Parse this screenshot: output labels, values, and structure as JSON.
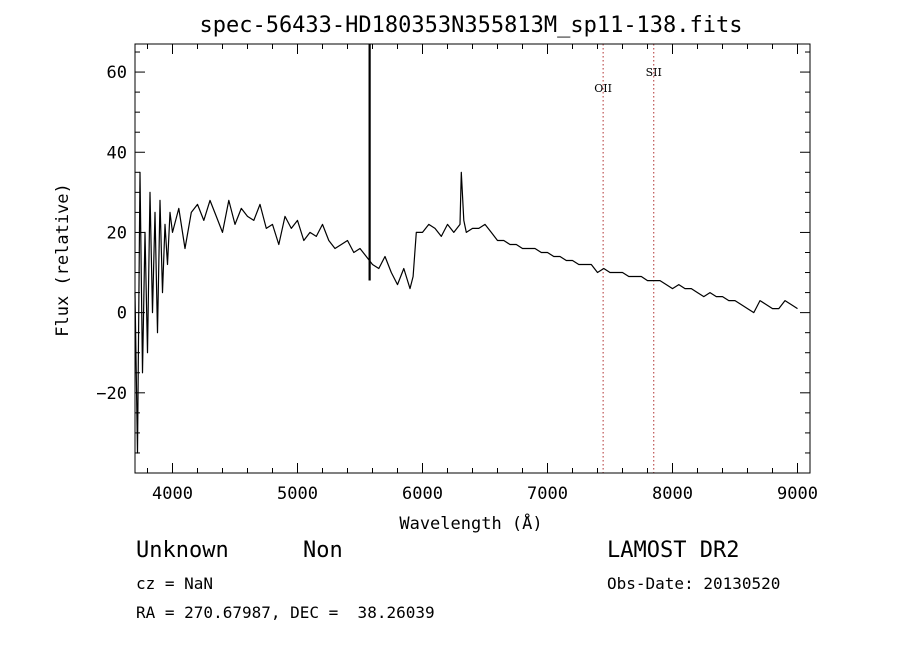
{
  "info": {
    "object_type": "Unknown",
    "subclass": "Non",
    "cz": "cz = NaN",
    "coords": "RA = 270.67987, DEC =  38.26039",
    "survey": "LAMOST DR2",
    "obs_date": "Obs-Date: 20130520"
  },
  "chart_data": {
    "type": "line",
    "title": "spec-56433-HD180353N355813M_sp11-138.fits",
    "xlabel": "Wavelength (Å)",
    "ylabel": "Flux (relative)",
    "xlim": [
      3700,
      9100
    ],
    "ylim": [
      -40,
      67
    ],
    "x_ticks": [
      4000,
      5000,
      6000,
      7000,
      8000,
      9000
    ],
    "y_ticks": [
      -20,
      0,
      20,
      40,
      60
    ],
    "grid": false,
    "line_color": "#000000",
    "marker_color": "#b03030",
    "emission_lines": [
      {
        "name": "OII",
        "x": 7445,
        "label_y": 55
      },
      {
        "name": "SII",
        "x": 7850,
        "label_y": 59
      }
    ],
    "spike": {
      "x": 5577,
      "y_top": 67,
      "y_bottom": 8
    },
    "series": [
      {
        "x": [
          3700,
          3720,
          3740,
          3760,
          3780,
          3800,
          3820,
          3840,
          3860,
          3880,
          3900,
          3920,
          3940,
          3960,
          3980,
          4000,
          4050,
          4100,
          4150,
          4200,
          4250,
          4300,
          4350,
          4400,
          4450,
          4500,
          4550,
          4600,
          4650,
          4700,
          4750,
          4800,
          4850,
          4900,
          4950,
          5000,
          5050,
          5100,
          5150,
          5200,
          5250,
          5300,
          5350,
          5400,
          5450,
          5500,
          5550,
          5600,
          5650,
          5700,
          5750,
          5800,
          5850,
          5900,
          5925,
          5950,
          6000,
          6050,
          6100,
          6150,
          6200,
          6250,
          6300,
          6310,
          6330,
          6350,
          6400,
          6450,
          6500,
          6550,
          6600,
          6650,
          6700,
          6750,
          6800,
          6850,
          6900,
          6950,
          7000,
          7050,
          7100,
          7150,
          7200,
          7250,
          7300,
          7350,
          7400,
          7450,
          7500,
          7550,
          7600,
          7650,
          7700,
          7750,
          7800,
          7850,
          7900,
          7950,
          8000,
          8050,
          8100,
          8150,
          8200,
          8250,
          8300,
          8350,
          8400,
          8450,
          8500,
          8550,
          8600,
          8650,
          8700,
          8750,
          8800,
          8850,
          8900,
          8950,
          9000
        ],
        "y": [
          5,
          -35,
          35,
          -15,
          20,
          -10,
          30,
          0,
          25,
          -5,
          28,
          5,
          22,
          12,
          25,
          20,
          26,
          16,
          25,
          27,
          23,
          28,
          24,
          20,
          28,
          22,
          26,
          24,
          23,
          27,
          21,
          22,
          17,
          24,
          21,
          23,
          18,
          20,
          19,
          22,
          18,
          16,
          17,
          18,
          15,
          16,
          14,
          12,
          11,
          14,
          10,
          7,
          11,
          6,
          9,
          20,
          20,
          22,
          21,
          19,
          22,
          20,
          22,
          35,
          23,
          20,
          21,
          21,
          22,
          20,
          18,
          18,
          17,
          17,
          16,
          16,
          16,
          15,
          15,
          14,
          14,
          13,
          13,
          12,
          12,
          12,
          10,
          11,
          10,
          10,
          10,
          9,
          9,
          9,
          8,
          8,
          8,
          7,
          6,
          7,
          6,
          6,
          5,
          4,
          5,
          4,
          4,
          3,
          3,
          2,
          1,
          0,
          3,
          2,
          1,
          1,
          3,
          2,
          1
        ]
      }
    ]
  }
}
